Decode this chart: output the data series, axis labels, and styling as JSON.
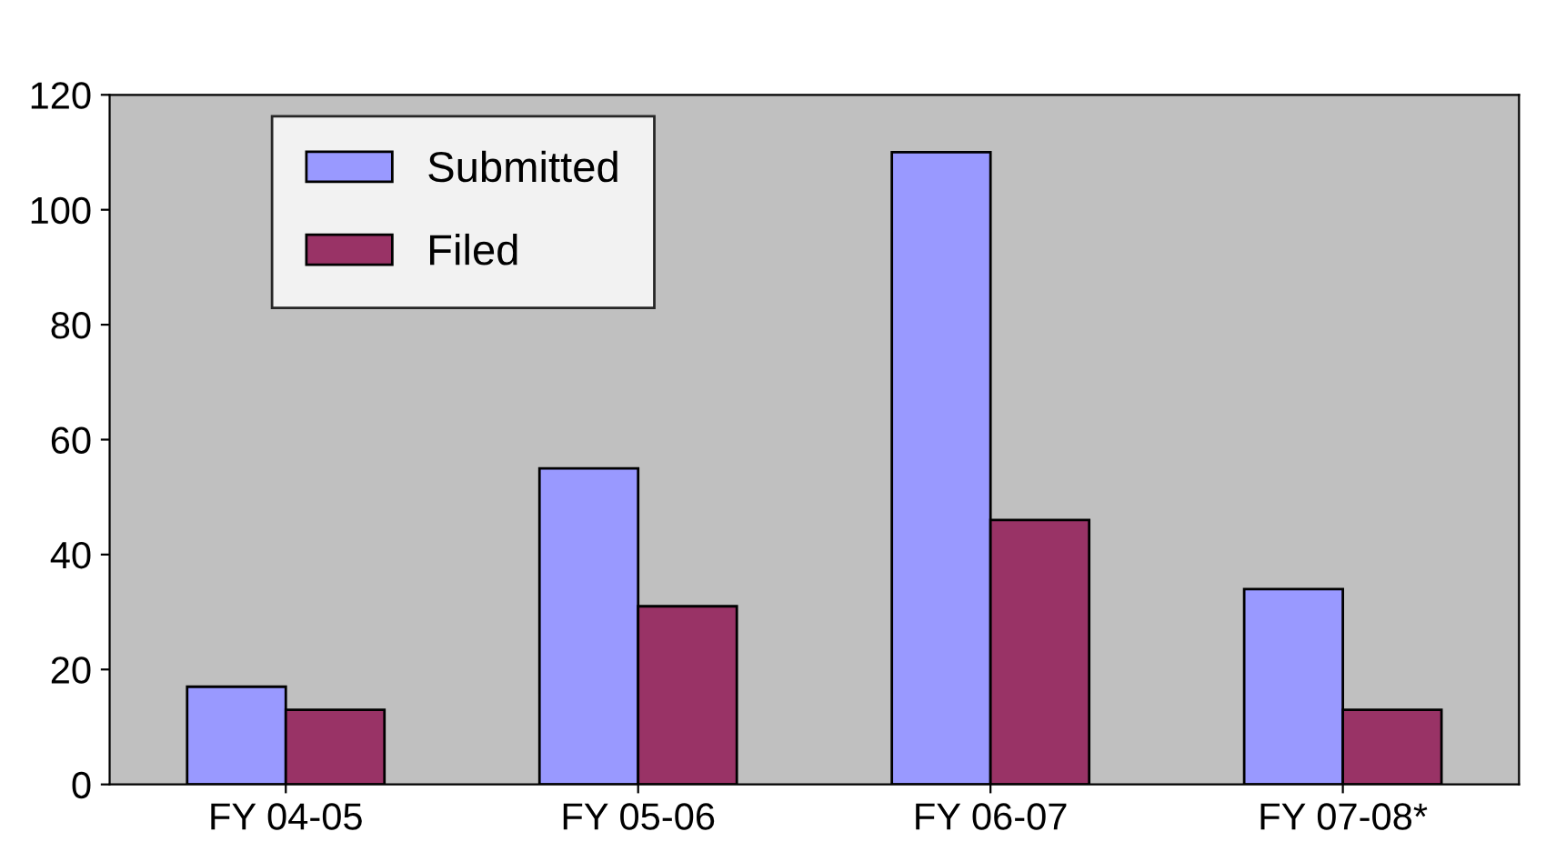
{
  "chart_data": {
    "type": "bar",
    "categories": [
      "FY 04-05",
      "FY 05-06",
      "FY 06-07",
      "FY 07-08*"
    ],
    "series": [
      {
        "name": "Submitted",
        "color": "#9999ff",
        "values": [
          17,
          55,
          110,
          34
        ]
      },
      {
        "name": "Filed",
        "color": "#993366",
        "values": [
          13,
          31,
          46,
          13
        ]
      }
    ],
    "ylim": [
      0,
      120
    ],
    "yticks": [
      0,
      20,
      40,
      60,
      80,
      100,
      120
    ],
    "grid": false,
    "legend": "top left"
  }
}
